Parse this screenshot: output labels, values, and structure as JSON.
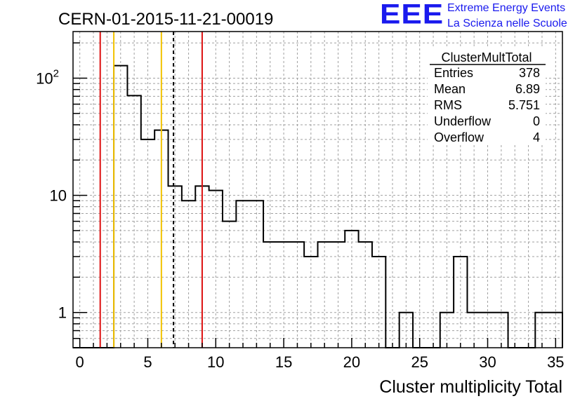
{
  "logo": {
    "mark": "EEE",
    "line1": "Extreme Energy Events",
    "line2": "La Scienza nelle Scuole"
  },
  "colors": {
    "red": "#dd1111",
    "gold": "#f2c200",
    "logo": "#1a1aee",
    "grid": "#a0a0a0"
  },
  "stats": {
    "title": "ClusterMultTotal",
    "rows": [
      {
        "label": "Entries",
        "value": "378"
      },
      {
        "label": "Mean",
        "value": "6.89"
      },
      {
        "label": "RMS",
        "value": "5.751"
      },
      {
        "label": "Underflow",
        "value": "0"
      },
      {
        "label": "Overflow",
        "value": "4"
      }
    ]
  },
  "chart_data": {
    "type": "histogram",
    "title": "CERN-01-2015-11-21-00019",
    "xlabel": "Cluster multiplicity Total",
    "ylabel": "",
    "xlim": [
      -0.5,
      35.5
    ],
    "ylim": [
      0.5,
      250
    ],
    "yscale": "log",
    "grid": true,
    "xticks": [
      0,
      5,
      10,
      15,
      20,
      25,
      30,
      35
    ],
    "yticks": [
      {
        "value": 1,
        "label": "1"
      },
      {
        "value": 10,
        "label": "10"
      },
      {
        "value": 100,
        "label": "10",
        "sup": "2"
      }
    ],
    "bin_width": 1,
    "bins": [
      {
        "x": 0,
        "count": 0
      },
      {
        "x": 1,
        "count": 0
      },
      {
        "x": 2,
        "count": 0
      },
      {
        "x": 3,
        "count": 128
      },
      {
        "x": 4,
        "count": 71
      },
      {
        "x": 5,
        "count": 30
      },
      {
        "x": 6,
        "count": 36
      },
      {
        "x": 7,
        "count": 12
      },
      {
        "x": 8,
        "count": 9
      },
      {
        "x": 9,
        "count": 12
      },
      {
        "x": 10,
        "count": 11
      },
      {
        "x": 11,
        "count": 6
      },
      {
        "x": 12,
        "count": 9
      },
      {
        "x": 13,
        "count": 9
      },
      {
        "x": 14,
        "count": 4
      },
      {
        "x": 15,
        "count": 4
      },
      {
        "x": 16,
        "count": 4
      },
      {
        "x": 17,
        "count": 3
      },
      {
        "x": 18,
        "count": 4
      },
      {
        "x": 19,
        "count": 4
      },
      {
        "x": 20,
        "count": 5
      },
      {
        "x": 21,
        "count": 4
      },
      {
        "x": 22,
        "count": 3
      },
      {
        "x": 23,
        "count": 0
      },
      {
        "x": 24,
        "count": 1
      },
      {
        "x": 25,
        "count": 0
      },
      {
        "x": 26,
        "count": 0
      },
      {
        "x": 27,
        "count": 1
      },
      {
        "x": 28,
        "count": 3
      },
      {
        "x": 29,
        "count": 1
      },
      {
        "x": 30,
        "count": 1
      },
      {
        "x": 31,
        "count": 1
      },
      {
        "x": 32,
        "count": 0
      },
      {
        "x": 33,
        "count": 0
      },
      {
        "x": 34,
        "count": 1
      },
      {
        "x": 35,
        "count": 1
      }
    ],
    "vertical_lines": [
      {
        "x": 1.5,
        "color": "#dd1111",
        "style": "solid"
      },
      {
        "x": 2.5,
        "color": "#f2c200",
        "style": "solid"
      },
      {
        "x": 6.0,
        "color": "#f2c200",
        "style": "solid"
      },
      {
        "x": 6.89,
        "color": "#000000",
        "style": "dashed"
      },
      {
        "x": 9.0,
        "color": "#dd1111",
        "style": "solid"
      }
    ]
  }
}
